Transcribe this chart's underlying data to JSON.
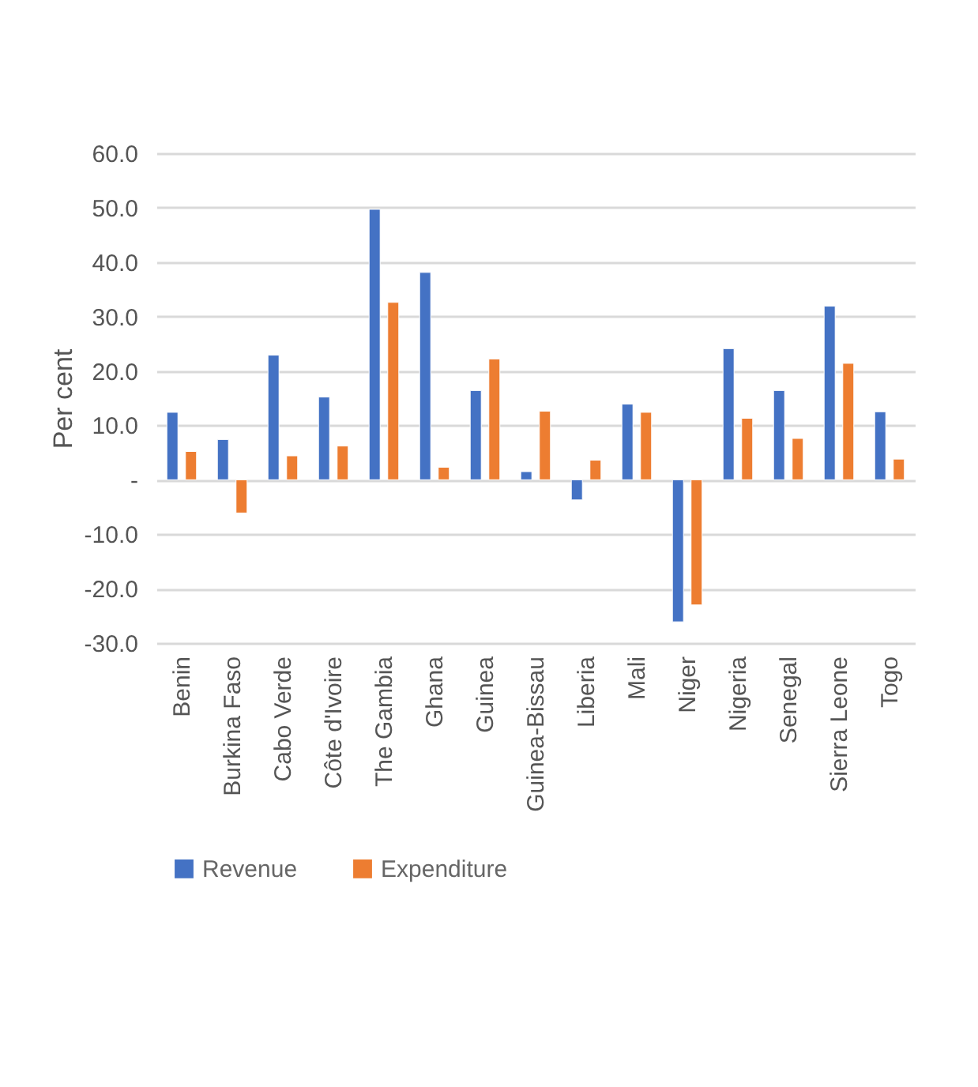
{
  "chart_data": {
    "type": "bar",
    "ylabel": "Per cent",
    "categories": [
      "Benin",
      "Burkina Faso",
      "Cabo Verde",
      "Côte d'Ivoire",
      "The Gambia",
      "Ghana",
      "Guinea",
      "Guinea-Bissau",
      "Liberia",
      "Mali",
      "Niger",
      "Nigeria",
      "Senegal",
      "Sierra Leone",
      "Togo"
    ],
    "series": [
      {
        "name": "Revenue",
        "color": "#4472c4",
        "values": [
          12.4,
          7.4,
          22.9,
          15.2,
          49.7,
          38.1,
          16.4,
          1.5,
          -3.7,
          13.9,
          -26.1,
          24.1,
          16.4,
          31.9,
          12.5
        ]
      },
      {
        "name": "Expenditure",
        "color": "#ed7d31",
        "values": [
          5.2,
          -6.1,
          4.4,
          6.2,
          32.6,
          2.3,
          22.2,
          12.6,
          3.6,
          12.4,
          -23.0,
          11.3,
          7.6,
          21.4,
          3.8
        ]
      }
    ],
    "ylim": [
      -30,
      60
    ],
    "yticks": [
      {
        "value": -30,
        "label": "-30.0"
      },
      {
        "value": -20,
        "label": "-20.0"
      },
      {
        "value": -10,
        "label": "-10.0"
      },
      {
        "value": 0,
        "label": "-"
      },
      {
        "value": 10,
        "label": "10.0"
      },
      {
        "value": 20,
        "label": "20.0"
      },
      {
        "value": 30,
        "label": "30.0"
      },
      {
        "value": 40,
        "label": "40.0"
      },
      {
        "value": 50,
        "label": "50.0"
      },
      {
        "value": 60,
        "label": "60.0"
      }
    ],
    "grid": "y",
    "legend": "bottom"
  }
}
